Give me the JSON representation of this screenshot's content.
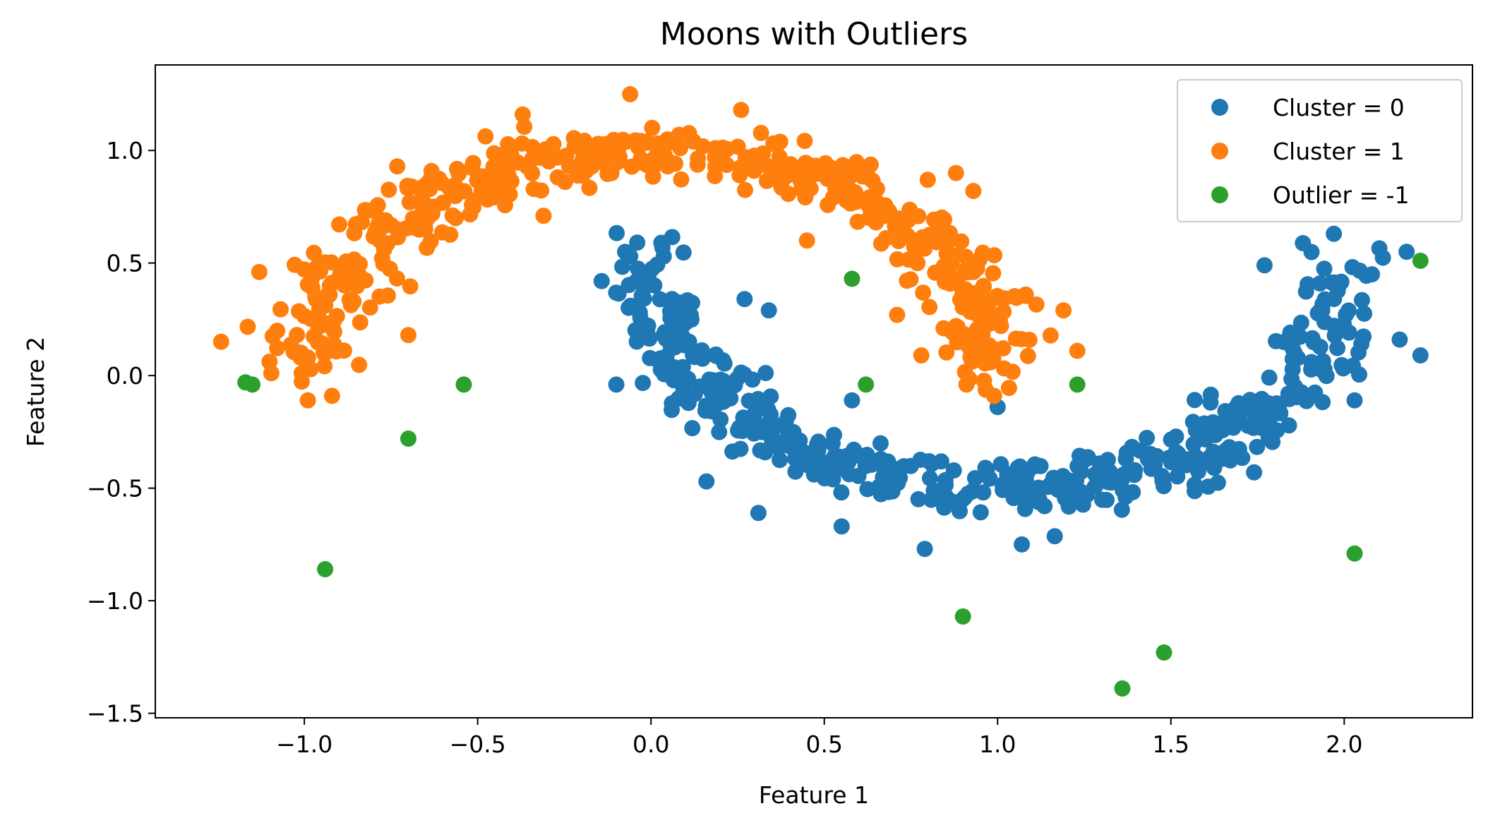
{
  "chart_data": {
    "type": "scatter",
    "title": "Moons with Outliers",
    "xlabel": "Feature 1",
    "ylabel": "Feature 2",
    "xlim": [
      -1.43,
      2.37
    ],
    "ylim": [
      -1.52,
      1.38
    ],
    "xticks": [
      -1.0,
      -0.5,
      0.0,
      0.5,
      1.0,
      1.5,
      2.0
    ],
    "yticks": [
      -1.5,
      -1.0,
      -0.5,
      0.0,
      0.5,
      1.0
    ],
    "xtick_labels": [
      "−1.0",
      "−0.5",
      "0.0",
      "0.5",
      "1.0",
      "1.5",
      "2.0"
    ],
    "ytick_labels": [
      "−1.5",
      "−1.0",
      "−0.5",
      "0.0",
      "0.5",
      "1.0"
    ],
    "grid": false,
    "legend_position": "top-right",
    "series": [
      {
        "name": "Cluster = 0",
        "color": "#1f77b4",
        "generator": "lower-moon",
        "count": 500,
        "noise": 0.065,
        "extra_points": [
          [
            0.03,
            0.59
          ],
          [
            -0.06,
            0.53
          ],
          [
            0.27,
            0.34
          ],
          [
            0.34,
            0.29
          ],
          [
            -0.1,
            -0.04
          ],
          [
            0.16,
            -0.47
          ],
          [
            0.31,
            -0.61
          ],
          [
            0.55,
            -0.67
          ],
          [
            0.79,
            -0.77
          ],
          [
            1.07,
            -0.75
          ],
          [
            1.0,
            -0.14
          ],
          [
            1.74,
            -0.43
          ],
          [
            1.97,
            0.63
          ],
          [
            2.08,
            0.45
          ],
          [
            2.16,
            0.16
          ],
          [
            2.22,
            0.09
          ],
          [
            2.03,
            -0.11
          ],
          [
            1.77,
            0.49
          ],
          [
            2.18,
            0.55
          ],
          [
            0.58,
            -0.11
          ]
        ]
      },
      {
        "name": "Cluster = 1",
        "color": "#ff7f0e",
        "generator": "upper-moon",
        "count": 500,
        "noise": 0.065,
        "extra_points": [
          [
            -1.24,
            0.15
          ],
          [
            -1.13,
            0.46
          ],
          [
            -0.99,
            -0.11
          ],
          [
            -0.92,
            -0.09
          ],
          [
            -0.37,
            1.16
          ],
          [
            -0.06,
            1.25
          ],
          [
            0.26,
            1.18
          ],
          [
            -0.31,
            0.71
          ],
          [
            0.45,
            0.6
          ],
          [
            0.78,
            0.09
          ],
          [
            0.71,
            0.27
          ],
          [
            1.23,
            0.11
          ],
          [
            1.19,
            0.29
          ],
          [
            0.99,
            -0.09
          ],
          [
            0.88,
            0.9
          ],
          [
            0.93,
            0.82
          ],
          [
            -0.7,
            0.18
          ],
          [
            0.91,
            -0.04
          ]
        ]
      },
      {
        "name": "Outlier = -1",
        "color": "#2ca02c",
        "points": [
          [
            -1.17,
            -0.03
          ],
          [
            -1.15,
            -0.04
          ],
          [
            -0.94,
            -0.86
          ],
          [
            -0.7,
            -0.28
          ],
          [
            -0.54,
            -0.04
          ],
          [
            0.58,
            0.43
          ],
          [
            0.62,
            -0.04
          ],
          [
            0.9,
            -1.07
          ],
          [
            1.23,
            -0.04
          ],
          [
            1.36,
            -1.39
          ],
          [
            1.48,
            -1.23
          ],
          [
            2.03,
            -0.79
          ],
          [
            2.22,
            0.51
          ]
        ]
      }
    ]
  }
}
